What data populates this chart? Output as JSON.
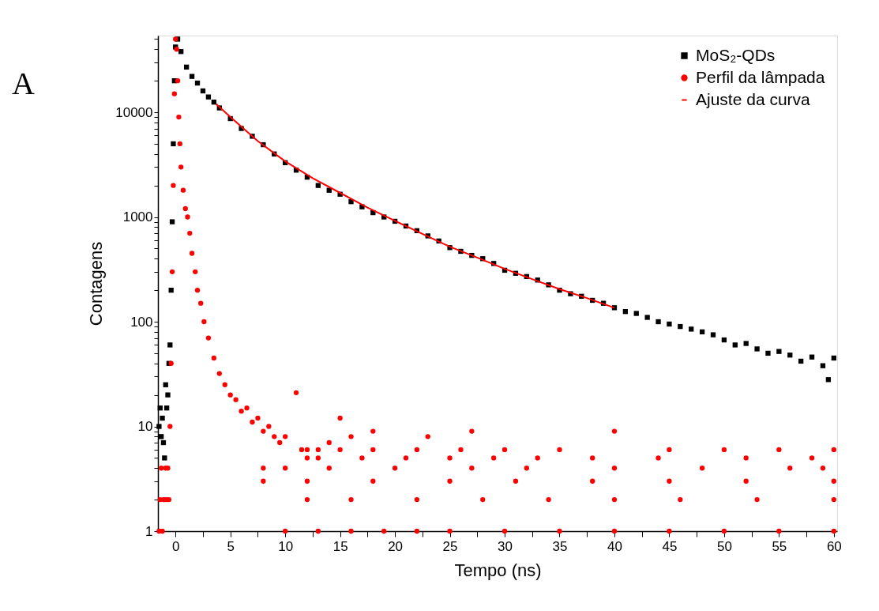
{
  "chart_data": {
    "type": "scatter",
    "xlabel": "Tempo (ns)",
    "ylabel": "Contagens",
    "annotations": [
      "A"
    ],
    "log": "y",
    "legend": "top right",
    "xlim": [
      -1.6,
      60.3
    ],
    "ylim": [
      1,
      54000
    ],
    "xticks": [
      0,
      {
        "value": 2.5,
        "label": null
      },
      5,
      {
        "value": 7.5,
        "label": null
      },
      10,
      {
        "value": 12.5,
        "label": null
      },
      15,
      {
        "value": 17.5,
        "label": null
      },
      20,
      {
        "value": 22.5,
        "label": null
      },
      25,
      {
        "value": 27.5,
        "label": null
      },
      30,
      {
        "value": 32.5,
        "label": null
      },
      35,
      {
        "value": 37.5,
        "label": null
      },
      40,
      {
        "value": 42.5,
        "label": null
      },
      45,
      {
        "value": 47.5,
        "label": null
      },
      50,
      {
        "value": 52.5,
        "label": null
      },
      55,
      {
        "value": 57.5,
        "label": null
      },
      60
    ],
    "yticks": [
      1,
      {
        "value": 2,
        "label": null
      },
      {
        "value": 3,
        "label": null
      },
      {
        "value": 4,
        "label": null
      },
      {
        "value": 5,
        "label": null
      },
      {
        "value": 6,
        "label": null
      },
      {
        "value": 7,
        "label": null
      },
      {
        "value": 8,
        "label": null
      },
      {
        "value": 9,
        "label": null
      },
      10,
      {
        "value": 20,
        "label": null
      },
      {
        "value": 30,
        "label": null
      },
      {
        "value": 40,
        "label": null
      },
      {
        "value": 50,
        "label": null
      },
      {
        "value": 60,
        "label": null
      },
      {
        "value": 70,
        "label": null
      },
      {
        "value": 80,
        "label": null
      },
      {
        "value": 90,
        "label": null
      },
      100,
      {
        "value": 200,
        "label": null
      },
      {
        "value": 300,
        "label": null
      },
      {
        "value": 400,
        "label": null
      },
      {
        "value": 500,
        "label": null
      },
      {
        "value": 600,
        "label": null
      },
      {
        "value": 700,
        "label": null
      },
      {
        "value": 800,
        "label": null
      },
      {
        "value": 900,
        "label": null
      },
      1000,
      {
        "value": 2000,
        "label": null
      },
      {
        "value": 3000,
        "label": null
      },
      {
        "value": 4000,
        "label": null
      },
      {
        "value": 5000,
        "label": null
      },
      {
        "value": 6000,
        "label": null
      },
      {
        "value": 7000,
        "label": null
      },
      {
        "value": 8000,
        "label": null
      },
      {
        "value": 9000,
        "label": null
      },
      10000,
      {
        "value": 20000,
        "label": null
      },
      {
        "value": 30000,
        "label": null
      },
      {
        "value": 40000,
        "label": null
      },
      {
        "value": 50000,
        "label": null
      }
    ],
    "series": [
      {
        "name": "MoS₂-QDs",
        "type": "scatter",
        "marker": "square",
        "color": "#000000",
        "x": [
          -1.5,
          -1.4,
          -1.3,
          -1.2,
          -1.1,
          -1.0,
          -0.9,
          -0.8,
          -0.7,
          -0.6,
          -0.5,
          -0.4,
          -0.3,
          -0.2,
          -0.1,
          0.0,
          0.2,
          0.5,
          1,
          1.5,
          2,
          2.5,
          3,
          3.5,
          4,
          5,
          6,
          7,
          8,
          9,
          10,
          11,
          12,
          13,
          14,
          15,
          16,
          17,
          18,
          19,
          20,
          21,
          22,
          23,
          24,
          25,
          26,
          27,
          28,
          29,
          30,
          31,
          32,
          33,
          34,
          35,
          36,
          37,
          38,
          39,
          40,
          41,
          42,
          43,
          44,
          45,
          46,
          47,
          48,
          49,
          50,
          51,
          52,
          53,
          54,
          55,
          56,
          57,
          58,
          59,
          59.5,
          60
        ],
        "values": [
          10,
          15,
          8,
          12,
          7,
          5,
          25,
          15,
          20,
          40,
          60,
          200,
          900,
          5000,
          20000,
          42000,
          50000,
          38000,
          27000,
          22000,
          19000,
          16000,
          14000,
          12500,
          11000,
          8700,
          7000,
          5900,
          4900,
          4000,
          3300,
          2800,
          2400,
          2000,
          1800,
          1650,
          1400,
          1250,
          1100,
          1000,
          910,
          820,
          740,
          660,
          590,
          510,
          470,
          430,
          400,
          360,
          310,
          290,
          270,
          250,
          225,
          200,
          185,
          175,
          160,
          150,
          136,
          125,
          120,
          110,
          100,
          95,
          90,
          85,
          80,
          75,
          67,
          60,
          62,
          55,
          50,
          52,
          48,
          42,
          46,
          38,
          28,
          45
        ]
      },
      {
        "name": "Perfil da lâmpada",
        "type": "scatter",
        "marker": "circle",
        "color": "#ff0000",
        "x": [
          -1.5,
          -1.4,
          -1.3,
          -1.2,
          -1.1,
          -1.0,
          -0.9,
          -0.8,
          -0.7,
          -0.6,
          -0.5,
          -0.4,
          -0.3,
          -0.2,
          -0.1,
          0,
          0.1,
          0.2,
          0.3,
          0.4,
          0.5,
          0.7,
          0.9,
          1.1,
          1.3,
          1.5,
          1.8,
          2.0,
          2.3,
          2.6,
          3.0,
          3.5,
          4.0,
          4.5,
          5.0,
          5.5,
          6.0,
          6.5,
          7.0,
          7.5,
          8.0,
          8,
          8,
          8.5,
          9.0,
          9.5,
          10,
          10,
          10,
          11,
          11.5,
          12,
          12,
          12,
          12,
          13,
          13,
          13,
          14,
          14,
          15,
          15,
          16,
          16,
          16,
          17,
          18,
          18,
          18,
          19,
          20,
          21,
          22,
          22,
          22,
          23,
          25,
          25,
          25,
          26,
          27,
          27,
          28,
          29,
          30,
          30,
          31,
          32,
          33,
          34,
          35,
          35,
          38,
          38,
          40,
          40,
          40,
          40,
          44,
          45,
          45,
          45,
          46,
          48,
          50,
          50,
          52,
          52,
          53,
          55,
          55,
          56,
          58,
          59,
          60,
          60,
          60,
          60
        ],
        "values": [
          1,
          2,
          4,
          1,
          2,
          2,
          4,
          2,
          4,
          2,
          10,
          40,
          300,
          2000,
          15000,
          50000,
          40000,
          20000,
          9000,
          5000,
          3000,
          1800,
          1200,
          1000,
          700,
          450,
          300,
          200,
          150,
          100,
          70,
          45,
          32,
          25,
          20,
          18,
          14,
          15,
          11,
          12,
          9,
          4,
          3,
          10,
          8,
          7,
          8,
          4,
          1,
          21,
          6,
          5,
          6,
          3,
          2,
          6,
          5,
          1,
          7,
          4,
          12,
          6,
          8,
          2,
          1,
          5,
          9,
          6,
          3,
          1,
          4,
          5,
          6,
          2,
          1,
          8,
          5,
          3,
          1,
          6,
          9,
          4,
          2,
          5,
          6,
          1,
          3,
          4,
          5,
          2,
          6,
          1,
          5,
          3,
          9,
          4,
          2,
          1,
          5,
          6,
          3,
          1,
          2,
          4,
          6,
          1,
          5,
          3,
          2,
          6,
          1,
          4,
          5,
          4,
          6,
          3,
          2,
          1
        ]
      },
      {
        "name": "Ajuste da curva",
        "type": "line",
        "marker": "none",
        "color": "#ff0000",
        "x": [
          3.7,
          5,
          7.5,
          10,
          12.5,
          15,
          17.5,
          20,
          22.5,
          25,
          27.5,
          30,
          32.5,
          35,
          37.5,
          40
        ],
        "values": [
          12000,
          9000,
          5300,
          3400,
          2350,
          1700,
          1230,
          920,
          690,
          520,
          410,
          320,
          255,
          205,
          168,
          136
        ]
      }
    ]
  }
}
